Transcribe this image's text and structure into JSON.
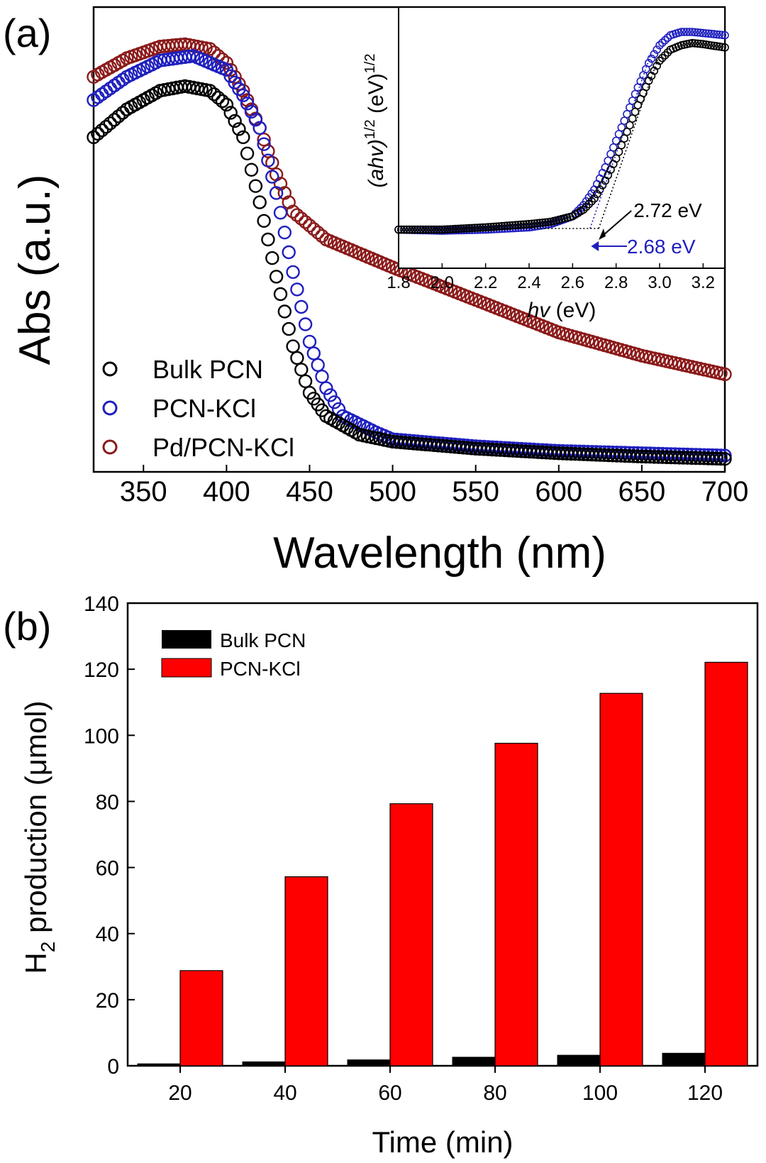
{
  "panel_labels": {
    "a": "(a)",
    "b": "(b)"
  },
  "colors": {
    "bulk": "#000000",
    "pcn_kcl": "#1f1fbf",
    "pd_pcn_kcl": "#8b1a1a",
    "bar_bulk": "#000000",
    "bar_pcn_kcl": "#ff0000"
  },
  "chart_data": [
    {
      "id": "panel-a",
      "type": "scatter",
      "title": "",
      "xlabel": "Wavelength (nm)",
      "ylabel": "Abs (a.u.)",
      "xlim": [
        320,
        700
      ],
      "ylim": [
        0,
        1.0
      ],
      "xticks": [
        350,
        400,
        450,
        500,
        550,
        600,
        650,
        700
      ],
      "yticks_shown": false,
      "legend_position": "bottom-left",
      "series": [
        {
          "name": "Bulk PCN",
          "points": [
            [
              320,
              0.72
            ],
            [
              340,
              0.78
            ],
            [
              360,
              0.82
            ],
            [
              375,
              0.83
            ],
            [
              390,
              0.82
            ],
            [
              400,
              0.79
            ],
            [
              410,
              0.72
            ],
            [
              420,
              0.58
            ],
            [
              430,
              0.42
            ],
            [
              440,
              0.27
            ],
            [
              450,
              0.17
            ],
            [
              460,
              0.12
            ],
            [
              480,
              0.08
            ],
            [
              500,
              0.065
            ],
            [
              550,
              0.05
            ],
            [
              600,
              0.04
            ],
            [
              650,
              0.033
            ],
            [
              700,
              0.028
            ]
          ]
        },
        {
          "name": "PCN-KCl",
          "points": [
            [
              320,
              0.8
            ],
            [
              340,
              0.85
            ],
            [
              360,
              0.885
            ],
            [
              380,
              0.895
            ],
            [
              400,
              0.865
            ],
            [
              410,
              0.81
            ],
            [
              420,
              0.74
            ],
            [
              430,
              0.6
            ],
            [
              440,
              0.43
            ],
            [
              450,
              0.28
            ],
            [
              460,
              0.18
            ],
            [
              470,
              0.12
            ],
            [
              490,
              0.085
            ],
            [
              500,
              0.07
            ],
            [
              550,
              0.055
            ],
            [
              600,
              0.045
            ],
            [
              650,
              0.04
            ],
            [
              700,
              0.035
            ]
          ]
        },
        {
          "name": "Pd/PCN-KCl",
          "points": [
            [
              320,
              0.85
            ],
            [
              340,
              0.89
            ],
            [
              360,
              0.915
            ],
            [
              375,
              0.92
            ],
            [
              390,
              0.91
            ],
            [
              400,
              0.88
            ],
            [
              410,
              0.82
            ],
            [
              420,
              0.74
            ],
            [
              430,
              0.64
            ],
            [
              440,
              0.56
            ],
            [
              460,
              0.5
            ],
            [
              500,
              0.44
            ],
            [
              550,
              0.37
            ],
            [
              600,
              0.3
            ],
            [
              650,
              0.25
            ],
            [
              700,
              0.21
            ]
          ]
        }
      ],
      "inset": {
        "xlabel_italic": "hv",
        "xlabel_rest": " (eV)",
        "ylabel_italic": "(ahv)",
        "ylabel_exp1": "1/2",
        "ylabel_rest": " (eV)",
        "ylabel_exp2": "1/2",
        "xlim": [
          1.8,
          3.3
        ],
        "ylim": [
          0,
          1.0
        ],
        "xticks": [
          "1.8",
          "2.0",
          "2.2",
          "2.4",
          "2.6",
          "2.8",
          "3.0",
          "3.2"
        ],
        "series": [
          {
            "name": "Bulk PCN",
            "points": [
              [
                1.8,
                0.11
              ],
              [
                2.0,
                0.11
              ],
              [
                2.2,
                0.12
              ],
              [
                2.4,
                0.135
              ],
              [
                2.5,
                0.145
              ],
              [
                2.6,
                0.17
              ],
              [
                2.65,
                0.2
              ],
              [
                2.7,
                0.25
              ],
              [
                2.75,
                0.33
              ],
              [
                2.8,
                0.43
              ],
              [
                2.85,
                0.55
              ],
              [
                2.9,
                0.67
              ],
              [
                2.95,
                0.78
              ],
              [
                3.0,
                0.87
              ],
              [
                3.05,
                0.92
              ],
              [
                3.1,
                0.94
              ],
              [
                3.15,
                0.95
              ],
              [
                3.2,
                0.945
              ],
              [
                3.3,
                0.93
              ]
            ]
          },
          {
            "name": "PCN-KCl",
            "points": [
              [
                1.8,
                0.11
              ],
              [
                2.0,
                0.105
              ],
              [
                2.2,
                0.11
              ],
              [
                2.4,
                0.12
              ],
              [
                2.5,
                0.135
              ],
              [
                2.6,
                0.17
              ],
              [
                2.65,
                0.22
              ],
              [
                2.7,
                0.29
              ],
              [
                2.75,
                0.39
              ],
              [
                2.8,
                0.51
              ],
              [
                2.85,
                0.63
              ],
              [
                2.9,
                0.75
              ],
              [
                2.95,
                0.86
              ],
              [
                3.0,
                0.94
              ],
              [
                3.05,
                0.985
              ],
              [
                3.1,
                1.0
              ],
              [
                3.15,
                1.0
              ],
              [
                3.2,
                0.995
              ],
              [
                3.3,
                0.985
              ]
            ]
          }
        ],
        "annotations": [
          {
            "label": "2.72 eV",
            "x": 2.72,
            "series": "Bulk PCN"
          },
          {
            "label": "2.68 eV",
            "x": 2.68,
            "series": "PCN-KCl"
          }
        ]
      }
    },
    {
      "id": "panel-b",
      "type": "bar",
      "title": "",
      "xlabel": "Time (min)",
      "ylabel_main": "H",
      "ylabel_sub": "2",
      "ylabel_rest": " production (μmol)",
      "categories": [
        "20",
        "40",
        "60",
        "80",
        "100",
        "120"
      ],
      "ylim": [
        0,
        140
      ],
      "yticks": [
        "0",
        "20",
        "40",
        "60",
        "80",
        "100",
        "120",
        "140"
      ],
      "legend_position": "top-left",
      "series": [
        {
          "name": "Bulk PCN",
          "values": [
            0.6,
            1.2,
            1.8,
            2.6,
            3.2,
            3.8
          ]
        },
        {
          "name": "PCN-KCl",
          "values": [
            28.8,
            57.2,
            79.3,
            97.6,
            112.7,
            122.1
          ]
        }
      ]
    }
  ]
}
